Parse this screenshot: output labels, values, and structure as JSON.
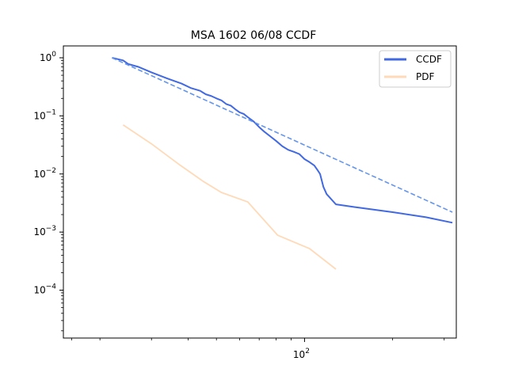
{
  "chart_data": {
    "type": "line",
    "title": "MSA 1602 06/08 CCDF",
    "xlabel": "",
    "ylabel": "",
    "xscale": "log",
    "yscale": "log",
    "xlim": [
      15,
      330
    ],
    "ylim": [
      1.5e-05,
      1.6
    ],
    "grid": false,
    "legend": "top-right",
    "x_ticks": [
      {
        "value": 100,
        "label": "10",
        "exp": "2"
      }
    ],
    "y_ticks": [
      {
        "value": 1,
        "label": "10",
        "exp": "0"
      },
      {
        "value": 0.1,
        "label": "10",
        "exp": "−1"
      },
      {
        "value": 0.01,
        "label": "10",
        "exp": "−2"
      },
      {
        "value": 0.001,
        "label": "10",
        "exp": "−3"
      },
      {
        "value": 0.0001,
        "label": "10",
        "exp": "−4"
      }
    ],
    "x_minor_ticks": [
      16,
      20,
      30,
      40,
      50,
      60,
      70,
      80,
      90,
      200,
      300
    ],
    "series": [
      {
        "name": "CCDF",
        "color": "#4169e1",
        "style": "solid",
        "legend": true,
        "points": [
          [
            22,
            1.0
          ],
          [
            24,
            0.9
          ],
          [
            25,
            0.78
          ],
          [
            27,
            0.7
          ],
          [
            30,
            0.56
          ],
          [
            34,
            0.44
          ],
          [
            38,
            0.36
          ],
          [
            41,
            0.3
          ],
          [
            44,
            0.27
          ],
          [
            46,
            0.235
          ],
          [
            48,
            0.22
          ],
          [
            50,
            0.2
          ],
          [
            52,
            0.185
          ],
          [
            54,
            0.16
          ],
          [
            56,
            0.15
          ],
          [
            58,
            0.13
          ],
          [
            60,
            0.115
          ],
          [
            62,
            0.108
          ],
          [
            64,
            0.095
          ],
          [
            67,
            0.08
          ],
          [
            70,
            0.064
          ],
          [
            73,
            0.053
          ],
          [
            77,
            0.043
          ],
          [
            80,
            0.037
          ],
          [
            84,
            0.03
          ],
          [
            88,
            0.026
          ],
          [
            92,
            0.024
          ],
          [
            96,
            0.022
          ],
          [
            100,
            0.018
          ],
          [
            104,
            0.016
          ],
          [
            108,
            0.014
          ],
          [
            111,
            0.0115
          ],
          [
            113,
            0.01
          ],
          [
            116,
            0.006
          ],
          [
            119,
            0.0045
          ],
          [
            128,
            0.003
          ],
          [
            148,
            0.0027
          ],
          [
            200,
            0.0022
          ],
          [
            260,
            0.0018
          ],
          [
            320,
            0.00145
          ]
        ]
      },
      {
        "name": "PDF",
        "color": "#ffdab9",
        "style": "solid",
        "legend": true,
        "points": [
          [
            24,
            0.07
          ],
          [
            30,
            0.033
          ],
          [
            37,
            0.015
          ],
          [
            45,
            0.0075
          ],
          [
            52,
            0.0048
          ],
          [
            64,
            0.0033
          ],
          [
            81,
            0.00088
          ],
          [
            104,
            0.00052
          ],
          [
            128,
            0.00023
          ]
        ]
      },
      {
        "name": "",
        "color": "#6495ed",
        "style": "dashed",
        "legend": false,
        "points": [
          [
            22,
            1.0
          ],
          [
            320,
            0.0022
          ]
        ]
      }
    ]
  }
}
